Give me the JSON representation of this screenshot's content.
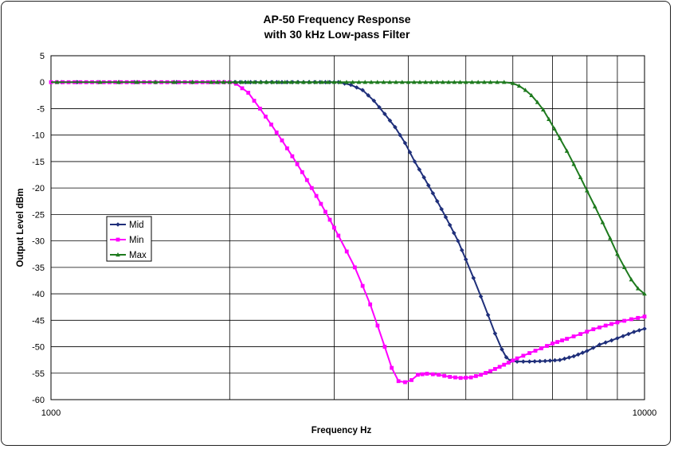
{
  "chart_data": {
    "type": "line",
    "title": "AP-50 Frequency Response",
    "subtitle": "with 30 kHz Low-pass Filter",
    "xlabel": "Frequency Hz",
    "ylabel": "Output Level dBm",
    "xscale": "log",
    "xlim": [
      1000,
      10000
    ],
    "ylim": [
      -60,
      5
    ],
    "x_tick_labels": [
      "1000",
      "10000"
    ],
    "y_tick_labels": [
      "5",
      "0",
      "-5",
      "-10",
      "-15",
      "-20",
      "-25",
      "-30",
      "-35",
      "-40",
      "-45",
      "-50",
      "-55",
      "-60"
    ],
    "grid": true,
    "legend_position": "left-middle",
    "series": [
      {
        "name": "Mid",
        "color": "#1f2f7a",
        "marker": "diamond",
        "points": [
          [
            1000,
            0
          ],
          [
            1500,
            0
          ],
          [
            2000,
            0
          ],
          [
            2500,
            0
          ],
          [
            2900,
            0
          ],
          [
            3050,
            0
          ],
          [
            3200,
            -0.5
          ],
          [
            3350,
            -1.5
          ],
          [
            3500,
            -3.5
          ],
          [
            3650,
            -6
          ],
          [
            3800,
            -8.5
          ],
          [
            3950,
            -11.5
          ],
          [
            4100,
            -15
          ],
          [
            4250,
            -18
          ],
          [
            4400,
            -21
          ],
          [
            4550,
            -24
          ],
          [
            4700,
            -27
          ],
          [
            4850,
            -30
          ],
          [
            5000,
            -33.5
          ],
          [
            5150,
            -37
          ],
          [
            5300,
            -40.5
          ],
          [
            5450,
            -44
          ],
          [
            5600,
            -47.5
          ],
          [
            5750,
            -50.5
          ],
          [
            5850,
            -52
          ],
          [
            5950,
            -52.7
          ],
          [
            6100,
            -52.8
          ],
          [
            6400,
            -52.8
          ],
          [
            6800,
            -52.7
          ],
          [
            7200,
            -52.5
          ],
          [
            7600,
            -51.8
          ],
          [
            8000,
            -50.8
          ],
          [
            8400,
            -49.6
          ],
          [
            8800,
            -48.8
          ],
          [
            9200,
            -48
          ],
          [
            9600,
            -47.2
          ],
          [
            10000,
            -46.6
          ]
        ]
      },
      {
        "name": "Min",
        "color": "#ff00ff",
        "marker": "square",
        "points": [
          [
            1000,
            0
          ],
          [
            1200,
            0
          ],
          [
            1500,
            0
          ],
          [
            1800,
            0
          ],
          [
            2000,
            0
          ],
          [
            2050,
            -0.3
          ],
          [
            2150,
            -2
          ],
          [
            2250,
            -5
          ],
          [
            2350,
            -8
          ],
          [
            2450,
            -11
          ],
          [
            2550,
            -14
          ],
          [
            2650,
            -17
          ],
          [
            2750,
            -20
          ],
          [
            2850,
            -23
          ],
          [
            2950,
            -26
          ],
          [
            3050,
            -29
          ],
          [
            3150,
            -32
          ],
          [
            3250,
            -35
          ],
          [
            3350,
            -38.5
          ],
          [
            3450,
            -42
          ],
          [
            3550,
            -46
          ],
          [
            3650,
            -50
          ],
          [
            3750,
            -54
          ],
          [
            3850,
            -56.5
          ],
          [
            3950,
            -56.7
          ],
          [
            4050,
            -56.3
          ],
          [
            4150,
            -55.3
          ],
          [
            4300,
            -55.1
          ],
          [
            4500,
            -55.3
          ],
          [
            4700,
            -55.7
          ],
          [
            4900,
            -55.9
          ],
          [
            5100,
            -55.8
          ],
          [
            5300,
            -55.3
          ],
          [
            5500,
            -54.6
          ],
          [
            5700,
            -53.8
          ],
          [
            5900,
            -53
          ],
          [
            6100,
            -52.2
          ],
          [
            6400,
            -51.2
          ],
          [
            6700,
            -50.3
          ],
          [
            7000,
            -49.4
          ],
          [
            7400,
            -48.5
          ],
          [
            7800,
            -47.6
          ],
          [
            8200,
            -46.7
          ],
          [
            8600,
            -46
          ],
          [
            9000,
            -45.4
          ],
          [
            9500,
            -44.8
          ],
          [
            10000,
            -44.3
          ]
        ]
      },
      {
        "name": "Max",
        "color": "#1e7a1e",
        "marker": "triangle",
        "points": [
          [
            1000,
            0
          ],
          [
            1500,
            0
          ],
          [
            2000,
            0
          ],
          [
            3000,
            0
          ],
          [
            4000,
            0
          ],
          [
            5000,
            0
          ],
          [
            5500,
            0
          ],
          [
            5800,
            0
          ],
          [
            6000,
            -0.2
          ],
          [
            6150,
            -0.7
          ],
          [
            6300,
            -1.5
          ],
          [
            6450,
            -2.5
          ],
          [
            6600,
            -3.8
          ],
          [
            6750,
            -5.2
          ],
          [
            6900,
            -7
          ],
          [
            7050,
            -8.8
          ],
          [
            7200,
            -10.6
          ],
          [
            7400,
            -13
          ],
          [
            7600,
            -15.5
          ],
          [
            7800,
            -18
          ],
          [
            8000,
            -20.5
          ],
          [
            8250,
            -23.5
          ],
          [
            8500,
            -26.5
          ],
          [
            8750,
            -29.5
          ],
          [
            9000,
            -32.5
          ],
          [
            9250,
            -35
          ],
          [
            9500,
            -37.3
          ],
          [
            9750,
            -39
          ],
          [
            10000,
            -40
          ]
        ]
      }
    ]
  }
}
